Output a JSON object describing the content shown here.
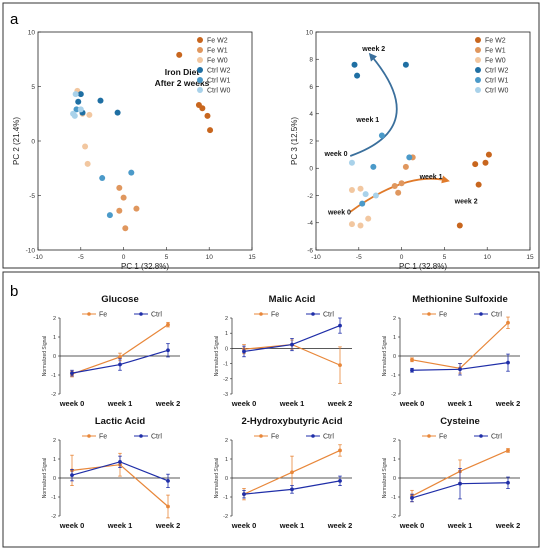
{
  "panels": {
    "a": {
      "label": "a"
    },
    "b": {
      "label": "b"
    }
  },
  "colors": {
    "fe_w2": "#c8661e",
    "fe_w1": "#e0975e",
    "fe_w0": "#f2c7a0",
    "ctrl_w2": "#1f6fa3",
    "ctrl_w1": "#4b9ac9",
    "ctrl_w0": "#a9d2ea",
    "fe_line": "#e8873a",
    "ctrl_line": "#1f2ea8",
    "arrow_ctrl": "#3a6f9c",
    "arrow_fe": "#e07a2a"
  },
  "chart_data": [
    {
      "type": "scatter",
      "id": "pca12",
      "title": "",
      "annotation": [
        "Iron Diet",
        "After 2 weeks"
      ],
      "xlabel": "PC 1 (32.8%)",
      "ylabel": "PC 2 (21.4%)",
      "xlim": [
        -10,
        15
      ],
      "ylim": [
        -10,
        10
      ],
      "xticks": [
        -10,
        -5,
        0,
        5,
        10,
        15
      ],
      "yticks": [
        -10,
        -5,
        0,
        5,
        10
      ],
      "legend_position": "top-right",
      "series": [
        {
          "name": "Fe W2",
          "color_key": "fe_w2",
          "points": [
            [
              6.5,
              7.9
            ],
            [
              8.8,
              3.3
            ],
            [
              9.2,
              3.0
            ],
            [
              9.8,
              2.3
            ],
            [
              10.1,
              1.0
            ]
          ]
        },
        {
          "name": "Fe W1",
          "color_key": "fe_w1",
          "points": [
            [
              -0.5,
              -4.3
            ],
            [
              -0.5,
              -6.4
            ],
            [
              0.0,
              -5.2
            ],
            [
              0.2,
              -8.0
            ],
            [
              1.5,
              -6.2
            ]
          ]
        },
        {
          "name": "Fe W0",
          "color_key": "fe_w0",
          "points": [
            [
              -4.5,
              -0.5
            ],
            [
              -4.2,
              -2.1
            ],
            [
              -4.0,
              2.4
            ],
            [
              -5.4,
              4.6
            ],
            [
              -4.8,
              2.5
            ]
          ]
        },
        {
          "name": "Ctrl W2",
          "color_key": "ctrl_w2",
          "points": [
            [
              -5.0,
              4.3
            ],
            [
              -5.3,
              3.6
            ],
            [
              -2.7,
              3.7
            ],
            [
              -0.7,
              2.6
            ],
            [
              -4.8,
              2.6
            ]
          ]
        },
        {
          "name": "Ctrl W1",
          "color_key": "ctrl_w1",
          "points": [
            [
              -2.5,
              -3.4
            ],
            [
              -1.6,
              -6.8
            ],
            [
              0.9,
              -2.9
            ],
            [
              -5.5,
              2.9
            ]
          ]
        },
        {
          "name": "Ctrl W0",
          "color_key": "ctrl_w0",
          "points": [
            [
              -5.9,
              2.5
            ],
            [
              -5.7,
              2.3
            ],
            [
              -5.0,
              2.9
            ],
            [
              -5.6,
              4.3
            ]
          ]
        }
      ]
    },
    {
      "type": "scatter",
      "id": "pca13",
      "title": "",
      "xlabel": "PC 1 (32.8%)",
      "ylabel": "PC 3 (12.5%)",
      "xlim": [
        -10,
        15
      ],
      "ylim": [
        -6,
        10
      ],
      "xticks": [
        -10,
        -5,
        0,
        5,
        10,
        15
      ],
      "yticks": [
        -6,
        -4,
        -2,
        0,
        2,
        4,
        6,
        8,
        10
      ],
      "legend_position": "top-right",
      "series": [
        {
          "name": "Fe W2",
          "color_key": "fe_w2",
          "points": [
            [
              8.6,
              0.3
            ],
            [
              9.8,
              0.4
            ],
            [
              10.2,
              1.0
            ],
            [
              9.0,
              -1.2
            ],
            [
              6.8,
              -4.2
            ]
          ]
        },
        {
          "name": "Fe W1",
          "color_key": "fe_w1",
          "points": [
            [
              -0.8,
              -1.3
            ],
            [
              -0.4,
              -1.8
            ],
            [
              0.0,
              -1.1
            ],
            [
              0.5,
              0.1
            ],
            [
              1.3,
              0.8
            ]
          ]
        },
        {
          "name": "Fe W0",
          "color_key": "fe_w0",
          "points": [
            [
              -5.8,
              -1.6
            ],
            [
              -4.8,
              -1.5
            ],
            [
              -5.8,
              -4.1
            ],
            [
              -4.8,
              -4.2
            ],
            [
              -3.9,
              -3.7
            ]
          ]
        },
        {
          "name": "Ctrl W2",
          "color_key": "ctrl_w2",
          "points": [
            [
              -5.5,
              7.6
            ],
            [
              -5.2,
              6.8
            ],
            [
              0.5,
              7.6
            ]
          ]
        },
        {
          "name": "Ctrl W1",
          "color_key": "ctrl_w1",
          "points": [
            [
              -2.3,
              2.4
            ],
            [
              -3.3,
              0.1
            ],
            [
              -4.6,
              -2.6
            ],
            [
              0.9,
              0.8
            ]
          ]
        },
        {
          "name": "Ctrl W0",
          "color_key": "ctrl_w0",
          "points": [
            [
              -5.8,
              0.4
            ],
            [
              -4.2,
              -1.9
            ],
            [
              -3.0,
              -2.0
            ]
          ]
        }
      ],
      "annotations": [
        {
          "text": "week 2",
          "x": -4.6,
          "y": 8.6
        },
        {
          "text": "week 1",
          "x": -5.3,
          "y": 3.4
        },
        {
          "text": "week 0",
          "x": -9.0,
          "y": 0.9
        },
        {
          "text": "week 1",
          "x": 2.1,
          "y": -0.8
        },
        {
          "text": "week 2",
          "x": 6.2,
          "y": -2.6
        },
        {
          "text": "week 0",
          "x": -8.6,
          "y": -3.4
        }
      ]
    },
    {
      "type": "line",
      "id": "glucose",
      "title": "Glucose",
      "ylabel": "Normalized Signal",
      "categories": [
        "week 0",
        "week 1",
        "week 2"
      ],
      "ylim": [
        -2,
        2
      ],
      "yticks": [
        -2,
        -1,
        0,
        1,
        2
      ],
      "legend_position": "top",
      "series": [
        {
          "name": "Fe",
          "color_key": "fe_line",
          "values": [
            -0.95,
            -0.05,
            1.65
          ],
          "errors": [
            0.15,
            0.2,
            0.12
          ]
        },
        {
          "name": "Ctrl",
          "color_key": "ctrl_line",
          "values": [
            -0.9,
            -0.45,
            0.3
          ],
          "errors": [
            0.15,
            0.3,
            0.35
          ]
        }
      ]
    },
    {
      "type": "line",
      "id": "malic",
      "title": "Malic Acid",
      "ylabel": "Normalized Signal",
      "categories": [
        "week 0",
        "week 1",
        "week 2"
      ],
      "ylim": [
        -3,
        2
      ],
      "yticks": [
        -3,
        -2,
        -1,
        0,
        1,
        2
      ],
      "legend_position": "top",
      "series": [
        {
          "name": "Fe",
          "color_key": "fe_line",
          "values": [
            -0.05,
            0.25,
            -1.1
          ],
          "errors": [
            0.3,
            0.3,
            1.2
          ]
        },
        {
          "name": "Ctrl",
          "color_key": "ctrl_line",
          "values": [
            -0.2,
            0.25,
            1.5
          ],
          "errors": [
            0.35,
            0.4,
            0.5
          ]
        }
      ]
    },
    {
      "type": "line",
      "id": "methionine",
      "title": "Methionine Sulfoxide",
      "ylabel": "Normalized Signal",
      "categories": [
        "week 0",
        "week 1",
        "week 2"
      ],
      "ylim": [
        -2,
        2
      ],
      "yticks": [
        -2,
        -1,
        0,
        1,
        2
      ],
      "legend_position": "top",
      "series": [
        {
          "name": "Fe",
          "color_key": "fe_line",
          "values": [
            -0.2,
            -0.65,
            1.75
          ],
          "errors": [
            0.1,
            0.25,
            0.3
          ]
        },
        {
          "name": "Ctrl",
          "color_key": "ctrl_line",
          "values": [
            -0.75,
            -0.7,
            -0.35
          ],
          "errors": [
            0.1,
            0.3,
            0.45
          ]
        }
      ]
    },
    {
      "type": "line",
      "id": "lactic",
      "title": "Lactic Acid",
      "ylabel": "Normalized Signal",
      "categories": [
        "week 0",
        "week 1",
        "week 2"
      ],
      "ylim": [
        -2,
        2
      ],
      "yticks": [
        -2,
        -1,
        0,
        1,
        2
      ],
      "legend_position": "top",
      "series": [
        {
          "name": "Fe",
          "color_key": "fe_line",
          "values": [
            0.4,
            0.7,
            -1.5
          ],
          "errors": [
            0.8,
            0.6,
            0.6
          ]
        },
        {
          "name": "Ctrl",
          "color_key": "ctrl_line",
          "values": [
            0.15,
            0.85,
            -0.15
          ],
          "errors": [
            0.3,
            0.3,
            0.35
          ]
        }
      ]
    },
    {
      "type": "line",
      "id": "hydroxybutyric",
      "title": "2-Hydroxybutyric Acid",
      "ylabel": "Normalized Signal",
      "categories": [
        "week 0",
        "week 1",
        "week 2"
      ],
      "ylim": [
        -2,
        2
      ],
      "yticks": [
        -2,
        -1,
        0,
        1,
        2
      ],
      "legend_position": "top",
      "series": [
        {
          "name": "Fe",
          "color_key": "fe_line",
          "values": [
            -0.85,
            0.3,
            1.45
          ],
          "errors": [
            0.3,
            0.85,
            0.3
          ]
        },
        {
          "name": "Ctrl",
          "color_key": "ctrl_line",
          "values": [
            -0.85,
            -0.6,
            -0.15
          ],
          "errors": [
            0.2,
            0.2,
            0.25
          ]
        }
      ]
    },
    {
      "type": "line",
      "id": "cysteine",
      "title": "Cysteine",
      "ylabel": "Normalized Signal",
      "categories": [
        "week 0",
        "week 1",
        "week 2"
      ],
      "ylim": [
        -2,
        2
      ],
      "yticks": [
        -2,
        -1,
        0,
        1,
        2
      ],
      "legend_position": "top",
      "series": [
        {
          "name": "Fe",
          "color_key": "fe_line",
          "values": [
            -0.95,
            0.35,
            1.45
          ],
          "errors": [
            0.3,
            0.6,
            0.1
          ]
        },
        {
          "name": "Ctrl",
          "color_key": "ctrl_line",
          "values": [
            -1.05,
            -0.3,
            -0.25
          ],
          "errors": [
            0.2,
            0.8,
            0.3
          ]
        }
      ]
    }
  ]
}
